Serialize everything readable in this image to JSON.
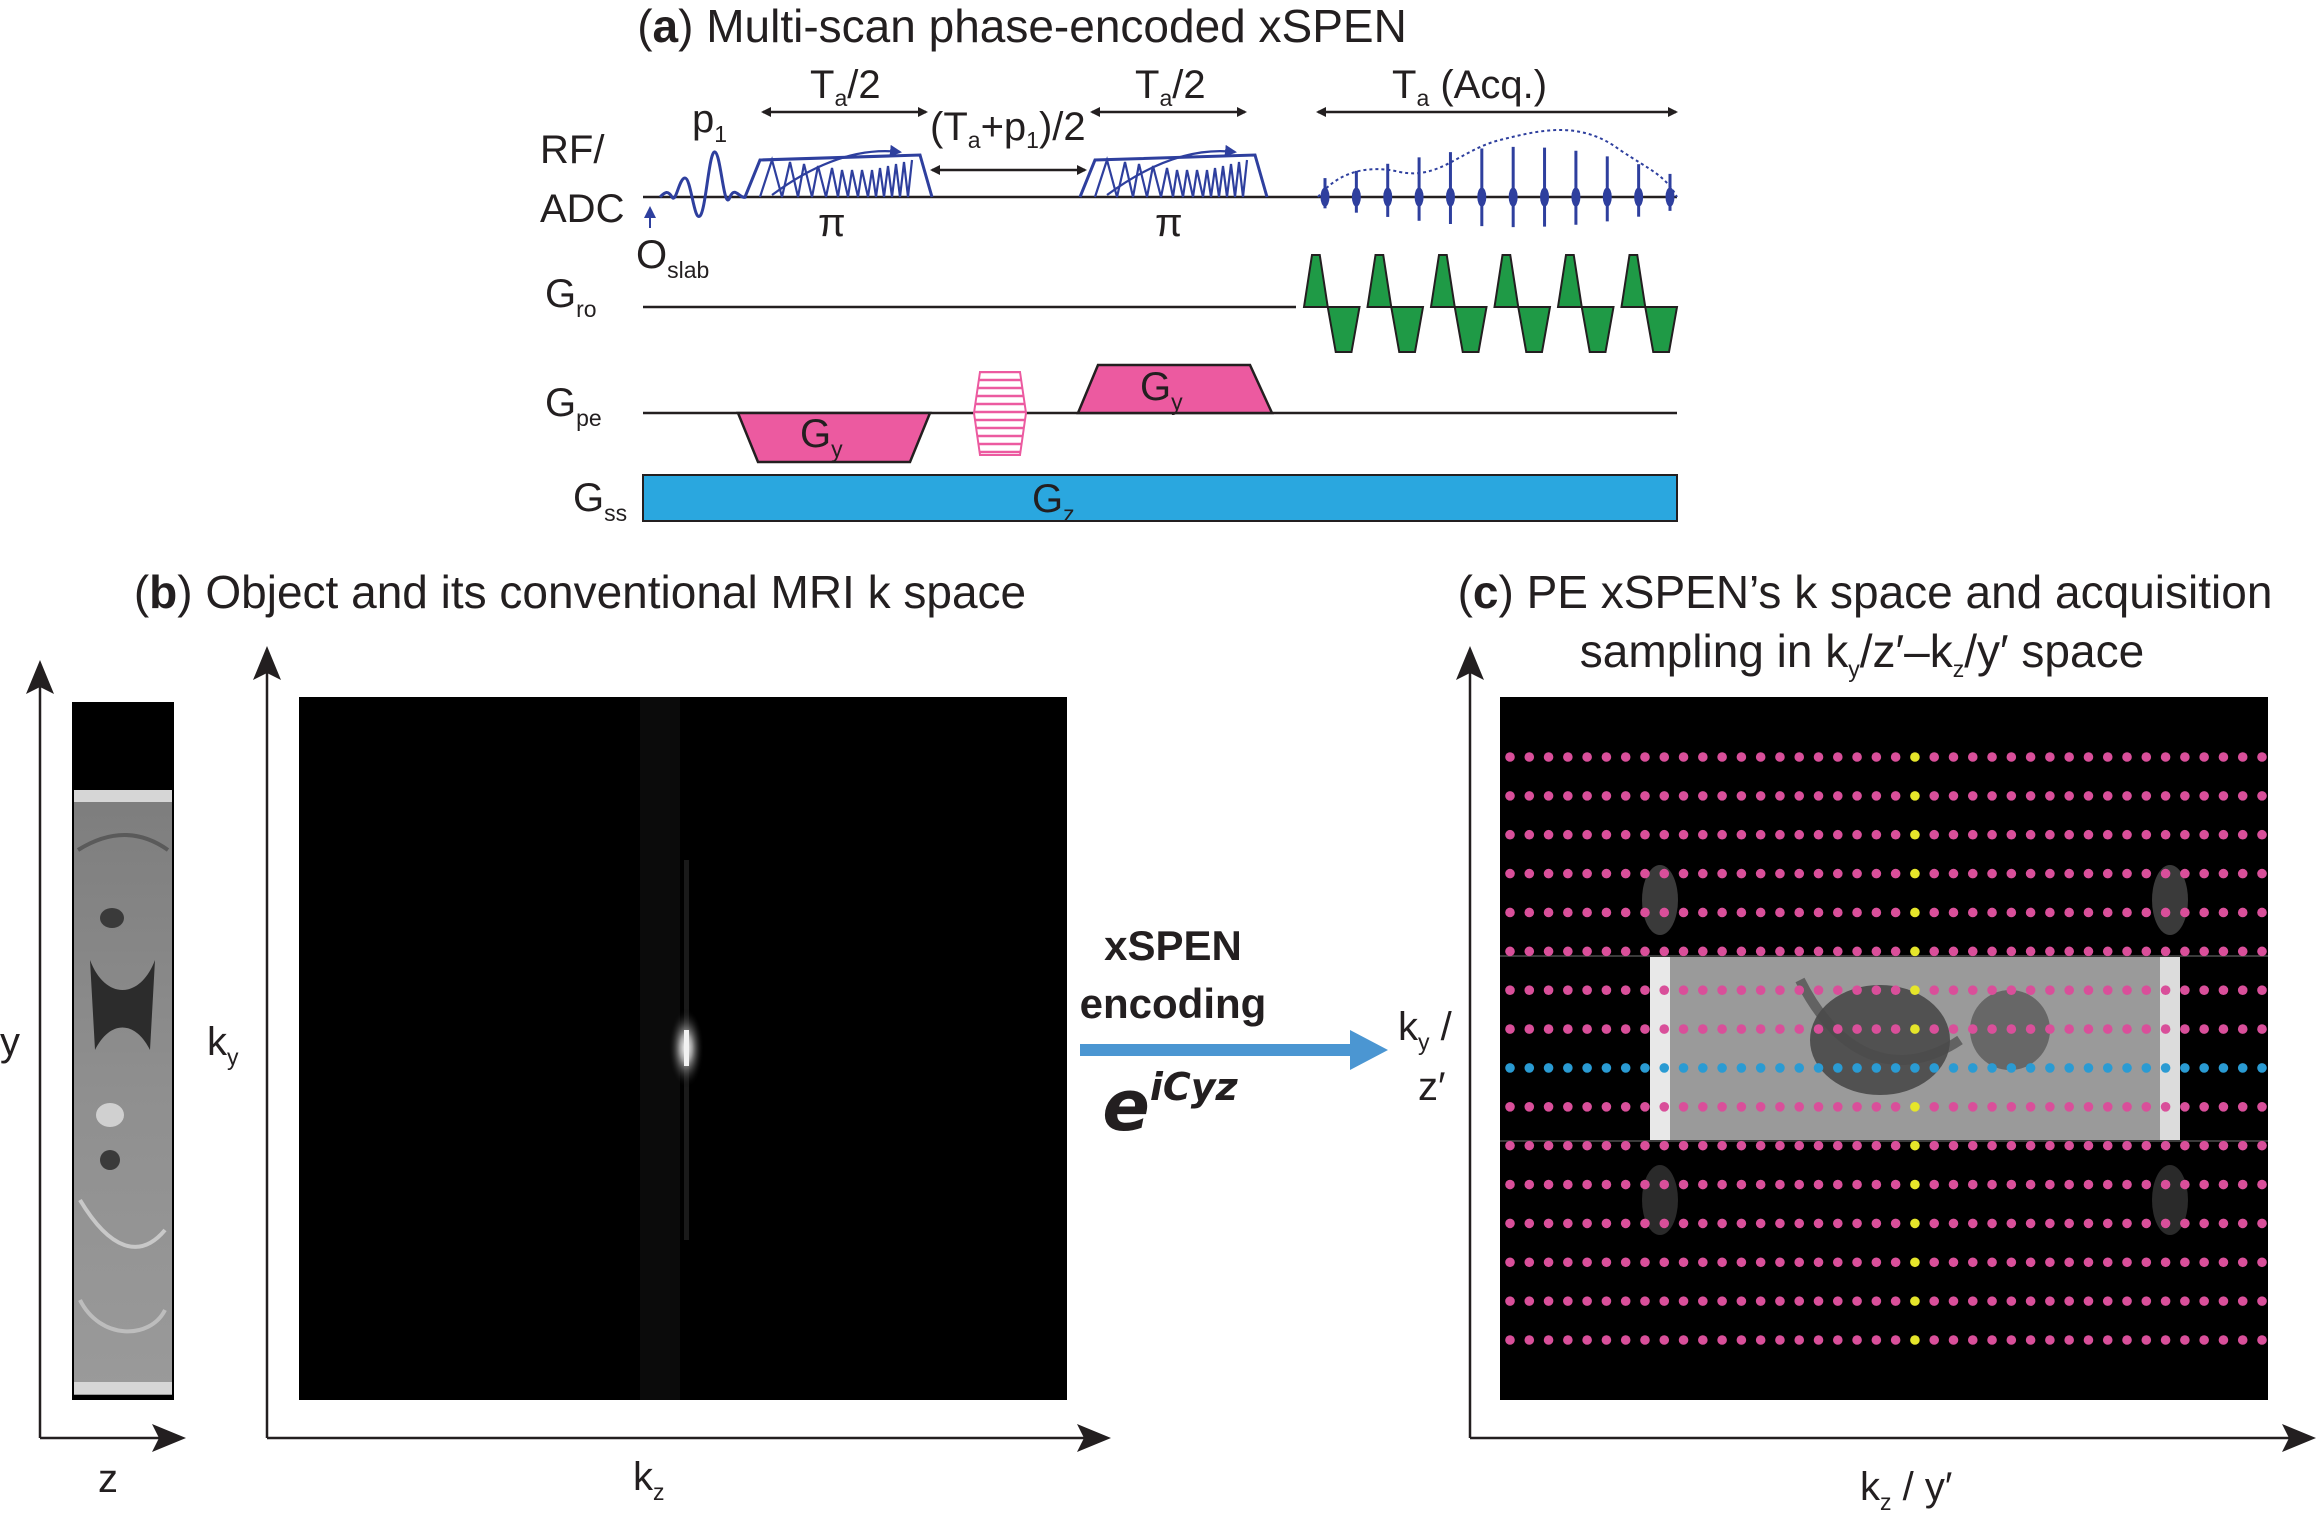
{
  "panel_a": {
    "label": "a",
    "title": "Multi-scan phase-encoded xSPEN",
    "rows": {
      "rf": {
        "line1": "RF/",
        "line2": "ADC"
      },
      "gro": {
        "main": "G",
        "sub": "ro"
      },
      "gpe": {
        "main": "G",
        "sub": "pe"
      },
      "gss": {
        "main": "G",
        "sub": "ss"
      }
    },
    "annotations": {
      "p1": {
        "main": "p",
        "sub": "1"
      },
      "oslab": {
        "main": "O",
        "sub": "slab"
      },
      "ta_half_1": {
        "main": "T",
        "sub": "a",
        "rest": "/2"
      },
      "ta_half_2": {
        "main": "T",
        "sub": "a",
        "rest": "/2"
      },
      "gap": {
        "open": "(T",
        "sub_a": "a",
        "mid": "+p",
        "sub_1": "1",
        "close": ")/2"
      },
      "ta_acq": {
        "main": "T",
        "sub": "a",
        "rest": " (Acq.)"
      },
      "pi_1": "π",
      "pi_2": "π"
    },
    "gradients": {
      "gy_neg": {
        "main": "G",
        "sub": "y"
      },
      "gy_pos": {
        "main": "G",
        "sub": "y"
      },
      "gz": {
        "main": "G",
        "sub": "z"
      }
    },
    "colors": {
      "rf": "#2e3f9e",
      "readout": "#1f9a46",
      "phase": "#ec5aa0",
      "slice": "#2aa7df"
    }
  },
  "panel_b": {
    "label": "b",
    "title": "Object and its conventional MRI k space",
    "axes": {
      "y": "y",
      "z": "z",
      "ky": {
        "main": "k",
        "sub": "y"
      },
      "kz": {
        "main": "k",
        "sub": "z"
      }
    }
  },
  "transform": {
    "line1": "xSPEN",
    "line2": "encoding",
    "formula_base": "e",
    "formula_exp": "iCyz"
  },
  "panel_c": {
    "label": "c",
    "title": "PE xSPEN’s k space and acquisition",
    "subtitle": {
      "pre": "sampling in k",
      "sub1": "y",
      "mid": "/z′–k",
      "sub2": "z",
      "post": "/y′ space"
    },
    "axes": {
      "vertical": {
        "main": "k",
        "sub": "y",
        "rest": " /",
        "line2": "z′"
      },
      "horizontal": {
        "main": "k",
        "sub": "z",
        "rest": " / y′"
      }
    },
    "sampling": {
      "rows": 16,
      "cols": 40,
      "highlight_row": 8,
      "highlight_col": 21
    },
    "colors": {
      "grid_dot": "#d94f9a",
      "highlight_row": "#2a9bd3",
      "highlight_col": "#e5e52a"
    }
  }
}
